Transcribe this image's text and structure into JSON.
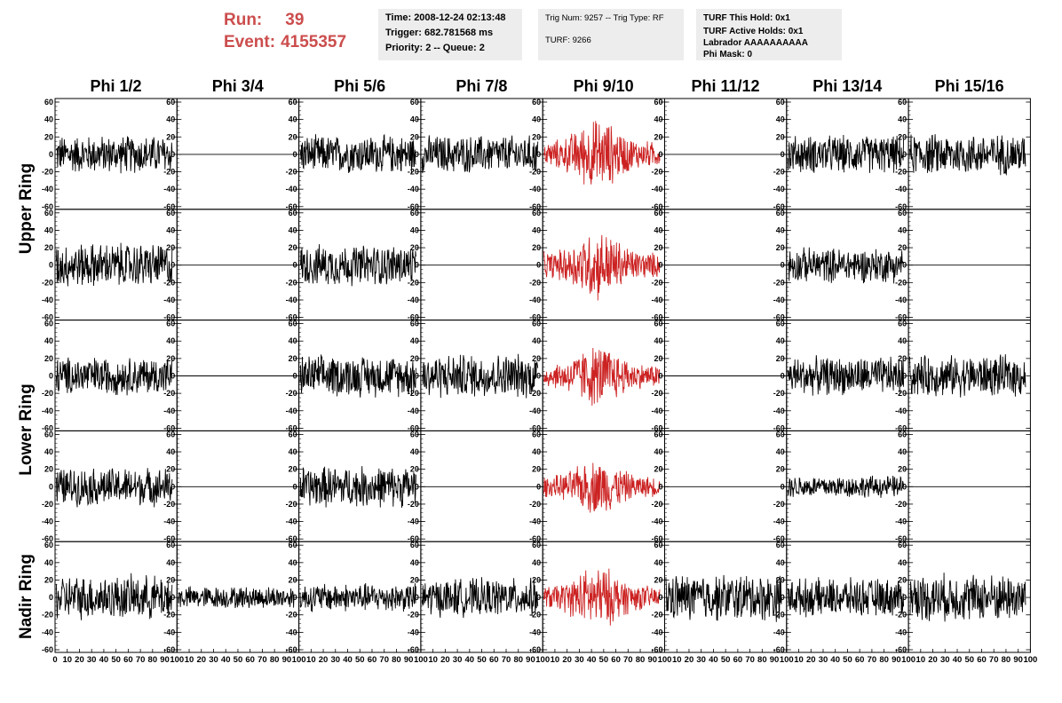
{
  "run": {
    "run_label": "Run:",
    "run_value": "39",
    "event_label": "Event:",
    "event_value": "4155357"
  },
  "time_box": {
    "time": "Time: 2008-12-24 02:13:48",
    "trigger": "Trigger: 682.781568 ms",
    "priority": "Priority: 2 -- Queue: 2"
  },
  "trig_box": {
    "trig": "Trig Num: 9257 -- Trig Type: RF",
    "turf": "TURF: 9266"
  },
  "turf_box": {
    "this_hold": "TURF This Hold: 0x1",
    "active_holds": "TURF Active Holds: 0x1",
    "labrador": "Labrador AAAAAAAAAA",
    "phi_mask": "Phi Mask: 0"
  },
  "columns": [
    "Phi 1/2",
    "Phi 3/4",
    "Phi 5/6",
    "Phi 7/8",
    "Phi 9/10",
    "Phi 11/12",
    "Phi 13/14",
    "Phi 15/16"
  ],
  "ring_labels": [
    "Upper Ring",
    "Lower Ring",
    "Nadir Ring"
  ],
  "colors": {
    "normal_trace": "#000000",
    "triggered_trace": "#cc2222",
    "red_text": "#cc4d4d",
    "box_bg": "#ededed"
  },
  "chart_data": {
    "type": "line",
    "layout": "grid of 5 rows x 8 columns of waveform panels",
    "xlim": [
      0,
      100
    ],
    "ylim": [
      -60,
      60
    ],
    "y_ticks": [
      -60,
      -40,
      -20,
      0,
      20,
      40,
      60
    ],
    "x_ticks": [
      0,
      10,
      20,
      30,
      40,
      50,
      60,
      70,
      80,
      90,
      100
    ],
    "x_tick_labels": [
      "0",
      "10",
      "20",
      "30",
      "40",
      "50",
      "60",
      "70",
      "80",
      "90",
      "100"
    ],
    "triggered_column": 4,
    "panel_rows": [
      {
        "ring": "Upper Ring",
        "panels": [
          {
            "kind": "noise",
            "amp": 24
          },
          {
            "kind": "flat"
          },
          {
            "kind": "noise",
            "amp": 24
          },
          {
            "kind": "noise",
            "amp": 24
          },
          {
            "kind": "pulse",
            "amp": 45
          },
          {
            "kind": "flat"
          },
          {
            "kind": "noise",
            "amp": 24
          },
          {
            "kind": "noise",
            "amp": 26
          }
        ]
      },
      {
        "ring": "Upper Ring",
        "panels": [
          {
            "kind": "noise",
            "amp": 28
          },
          {
            "kind": "flat"
          },
          {
            "kind": "noise",
            "amp": 26
          },
          {
            "kind": "flat"
          },
          {
            "kind": "pulse",
            "amp": 45
          },
          {
            "kind": "flat"
          },
          {
            "kind": "noise",
            "amp": 22
          },
          {
            "kind": "flat"
          }
        ]
      },
      {
        "ring": "Lower Ring",
        "panels": [
          {
            "kind": "noise",
            "amp": 24
          },
          {
            "kind": "flat"
          },
          {
            "kind": "noise",
            "amp": 26
          },
          {
            "kind": "noise",
            "amp": 28
          },
          {
            "kind": "pulse",
            "amp": 40
          },
          {
            "kind": "flat"
          },
          {
            "kind": "noise",
            "amp": 24
          },
          {
            "kind": "noise",
            "amp": 26
          }
        ]
      },
      {
        "ring": "Lower Ring",
        "panels": [
          {
            "kind": "noise",
            "amp": 24
          },
          {
            "kind": "flat"
          },
          {
            "kind": "noise",
            "amp": 26
          },
          {
            "kind": "flat"
          },
          {
            "kind": "pulse",
            "amp": 35
          },
          {
            "kind": "flat"
          },
          {
            "kind": "noise",
            "amp": 14
          },
          {
            "kind": "flat"
          }
        ]
      },
      {
        "ring": "Nadir Ring",
        "panels": [
          {
            "kind": "noise",
            "amp": 28
          },
          {
            "kind": "noise",
            "amp": 14
          },
          {
            "kind": "noise",
            "amp": 18
          },
          {
            "kind": "noise",
            "amp": 24
          },
          {
            "kind": "pulse",
            "amp": 40
          },
          {
            "kind": "noise",
            "amp": 30
          },
          {
            "kind": "noise",
            "amp": 24
          },
          {
            "kind": "noise",
            "amp": 30
          }
        ]
      }
    ]
  }
}
